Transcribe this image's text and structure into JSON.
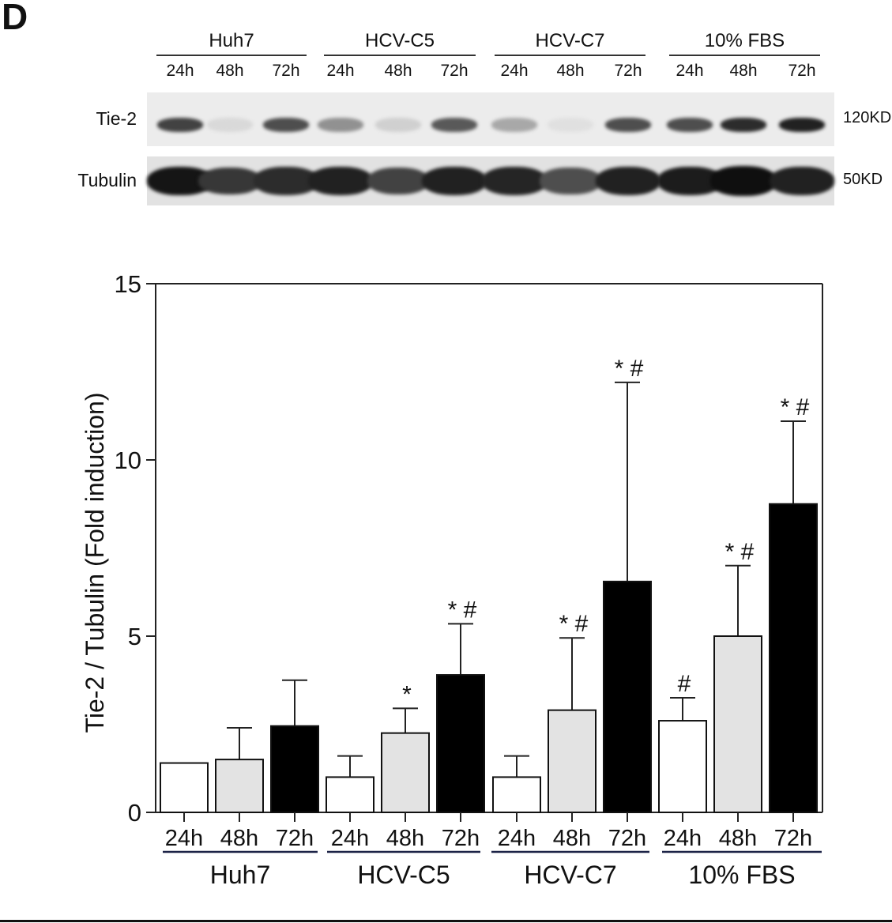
{
  "panel_label": "D",
  "western_blot": {
    "groups": [
      {
        "name": "Huh7",
        "lanes": [
          "24h",
          "48h",
          "72h"
        ]
      },
      {
        "name": "HCV-C5",
        "lanes": [
          "24h",
          "48h",
          "72h"
        ]
      },
      {
        "name": "HCV-C7",
        "lanes": [
          "24h",
          "48h",
          "72h"
        ]
      },
      {
        "name": "10% FBS",
        "lanes": [
          "24h",
          "48h",
          "72h"
        ]
      }
    ],
    "rows": [
      {
        "label": "Tie-2",
        "size": "120KD",
        "intensity": [
          0.75,
          0.08,
          0.7,
          0.4,
          0.12,
          0.65,
          0.3,
          0.05,
          0.7,
          0.7,
          0.85,
          0.9
        ]
      },
      {
        "label": "Tubulin",
        "size": "50KD",
        "intensity": [
          0.95,
          0.8,
          0.85,
          0.9,
          0.75,
          0.9,
          0.88,
          0.7,
          0.9,
          0.92,
          0.98,
          0.9
        ]
      }
    ]
  },
  "chart_data": {
    "type": "bar",
    "title": "",
    "xlabel": "",
    "ylabel": "Tie-2 / Tubulin (Fold induction)",
    "ylim": [
      0,
      15
    ],
    "yticks": [
      0,
      5,
      10,
      15
    ],
    "grid": false,
    "legend": null,
    "groups": [
      "Huh7",
      "HCV-C5",
      "HCV-C7",
      "10% FBS"
    ],
    "categories": [
      "24h",
      "48h",
      "72h",
      "24h",
      "48h",
      "72h",
      "24h",
      "48h",
      "72h",
      "24h",
      "48h",
      "72h"
    ],
    "group_of_category": [
      "Huh7",
      "Huh7",
      "Huh7",
      "HCV-C5",
      "HCV-C5",
      "HCV-C5",
      "HCV-C7",
      "HCV-C7",
      "HCV-C7",
      "10% FBS",
      "10% FBS",
      "10% FBS"
    ],
    "values": [
      1.4,
      1.5,
      2.45,
      1.0,
      2.25,
      3.9,
      1.0,
      2.9,
      6.55,
      2.6,
      5.0,
      8.75
    ],
    "error_upper": [
      0,
      2.4,
      3.75,
      1.6,
      2.95,
      5.35,
      1.6,
      4.95,
      12.2,
      3.25,
      7.0,
      11.1
    ],
    "annotations": [
      "",
      "",
      "",
      "",
      "*",
      "*#",
      "",
      "*#",
      "*#",
      "#",
      "*#",
      "*#"
    ],
    "bar_colors": {
      "24h": "#ffffff",
      "48h": "#e3e3e3",
      "72h": "#000000"
    }
  }
}
